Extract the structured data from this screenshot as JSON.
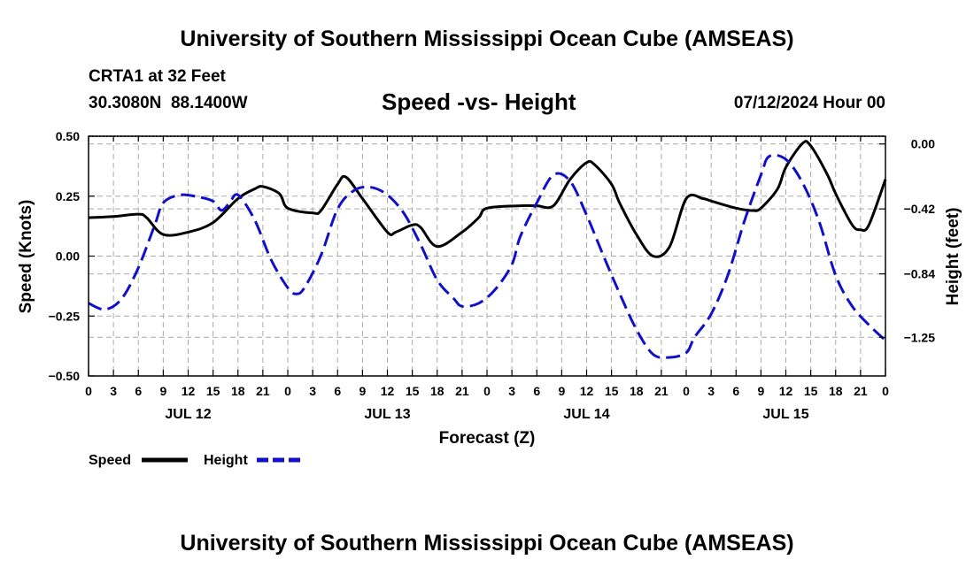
{
  "header": {
    "title": "University of Southern Mississippi Ocean Cube (AMSEAS)",
    "station": "CRTA1 at 32 Feet",
    "coords": "30.3080N  88.1400W",
    "plot_title": "Speed -vs- Height",
    "date": "07/12/2024 Hour 00"
  },
  "footer": {
    "title": "University of Southern Mississippi Ocean Cube (AMSEAS)"
  },
  "legend": {
    "speed_label": "Speed",
    "height_label": "Height"
  },
  "colors": {
    "speed": "#000000",
    "height": "#1010c8",
    "grid": "#aaaaaa"
  },
  "chart_data": {
    "type": "line",
    "title": "Speed -vs- Height",
    "xlabel": "Forecast (Z)",
    "ylabel": "Speed (Knots)",
    "y2label": "Height (feet)",
    "xlim": [
      0,
      96
    ],
    "ylim": [
      -0.5,
      0.5
    ],
    "y2lim": [
      -1.5,
      0.05
    ],
    "x_ticks": [
      0,
      3,
      6,
      9,
      12,
      15,
      18,
      21,
      24,
      27,
      30,
      33,
      36,
      39,
      42,
      45,
      48,
      51,
      54,
      57,
      60,
      63,
      66,
      69,
      72,
      75,
      78,
      81,
      84,
      87,
      90,
      93,
      96
    ],
    "x_tick_labels": [
      "0",
      "3",
      "6",
      "9",
      "12",
      "15",
      "18",
      "21",
      "0",
      "3",
      "6",
      "9",
      "12",
      "15",
      "18",
      "21",
      "0",
      "3",
      "6",
      "9",
      "12",
      "15",
      "18",
      "21",
      "0",
      "3",
      "6",
      "9",
      "12",
      "15",
      "18",
      "21",
      "0"
    ],
    "day_labels": [
      {
        "label": "JUL 12",
        "hour": 12
      },
      {
        "label": "JUL 13",
        "hour": 36
      },
      {
        "label": "JUL 14",
        "hour": 60
      },
      {
        "label": "JUL 15",
        "hour": 84
      }
    ],
    "y_ticks": [
      -0.5,
      -0.25,
      0,
      0.25,
      0.5
    ],
    "y_tick_labels": [
      "−0.50",
      "−0.25",
      "0.00",
      "0.25",
      "0.50"
    ],
    "y2_ticks": [
      0,
      -0.42,
      -0.84,
      -1.25
    ],
    "y2_tick_labels": [
      "0.00",
      "−0.42",
      "−0.84",
      "−1.25"
    ],
    "series": [
      {
        "name": "Speed",
        "axis": "left",
        "style": "solid",
        "x": [
          0,
          3,
          6,
          7,
          9,
          12,
          15,
          18,
          20,
          21,
          23,
          24,
          27,
          28,
          30,
          31,
          33,
          36,
          37,
          39,
          40,
          42,
          45,
          47,
          48,
          52,
          54,
          56,
          58,
          60,
          61,
          63,
          64,
          66,
          68,
          70,
          72,
          74,
          75,
          78,
          80,
          81,
          83,
          84,
          86,
          87,
          89,
          90,
          92,
          93,
          94,
          96
        ],
        "y": [
          0.16,
          0.165,
          0.175,
          0.16,
          0.09,
          0.1,
          0.14,
          0.24,
          0.28,
          0.29,
          0.26,
          0.2,
          0.18,
          0.19,
          0.3,
          0.33,
          0.24,
          0.1,
          0.1,
          0.13,
          0.12,
          0.04,
          0.1,
          0.16,
          0.2,
          0.21,
          0.21,
          0.21,
          0.32,
          0.39,
          0.38,
          0.3,
          0.22,
          0.09,
          0,
          0.04,
          0.24,
          0.24,
          0.23,
          0.2,
          0.19,
          0.2,
          0.28,
          0.37,
          0.47,
          0.46,
          0.34,
          0.26,
          0.13,
          0.11,
          0.13,
          0.32
        ]
      },
      {
        "name": "Height",
        "axis": "right",
        "style": "dashed",
        "x": [
          0,
          2,
          4,
          6,
          8,
          9,
          11,
          13,
          15,
          16,
          17,
          18,
          20,
          22,
          24,
          25,
          26,
          28,
          30,
          32,
          34,
          36,
          38,
          40,
          42,
          44,
          45,
          47,
          49,
          51,
          52,
          54,
          56,
          58,
          60,
          62,
          64,
          66,
          68,
          70,
          72,
          73,
          75,
          77,
          79,
          81,
          82,
          84,
          86,
          88,
          90,
          92,
          94,
          96
        ],
        "y": [
          -1.03,
          -1.07,
          -1.0,
          -0.8,
          -0.52,
          -0.38,
          -0.33,
          -0.34,
          -0.37,
          -0.43,
          -0.38,
          -0.33,
          -0.49,
          -0.75,
          -0.93,
          -0.97,
          -0.93,
          -0.72,
          -0.42,
          -0.3,
          -0.28,
          -0.33,
          -0.45,
          -0.65,
          -0.88,
          -1.0,
          -1.05,
          -1.03,
          -0.94,
          -0.78,
          -0.6,
          -0.38,
          -0.2,
          -0.24,
          -0.46,
          -0.72,
          -0.97,
          -1.2,
          -1.36,
          -1.38,
          -1.35,
          -1.25,
          -1.1,
          -0.85,
          -0.5,
          -0.2,
          -0.08,
          -0.1,
          -0.25,
          -0.5,
          -0.85,
          -1.05,
          -1.17,
          -1.27
        ]
      }
    ]
  }
}
